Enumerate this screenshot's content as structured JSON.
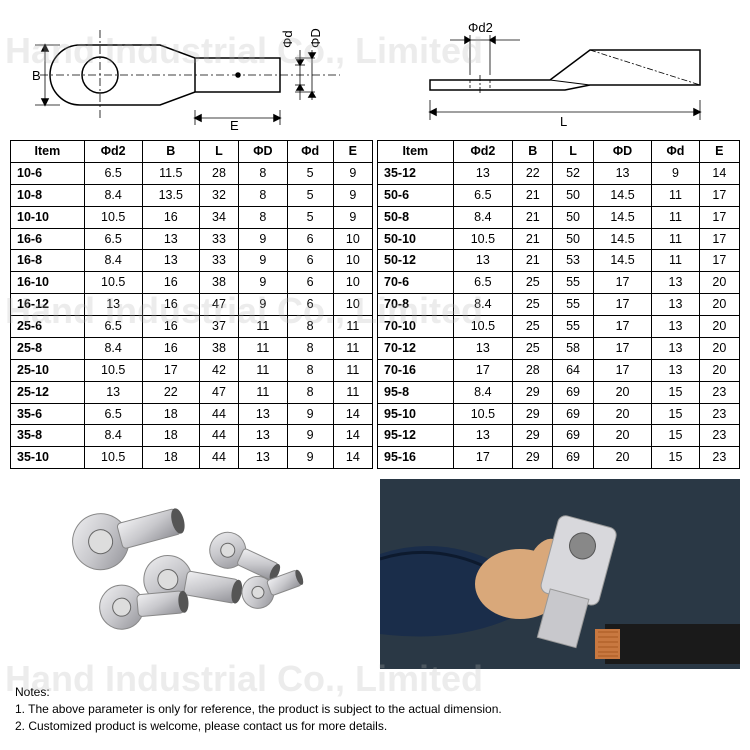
{
  "watermark_text": "Hand Industrial Co., Limited",
  "diagrams": {
    "left": {
      "labels": {
        "B": "B",
        "E": "E",
        "phi_d": "Φd",
        "phi_D": "ΦD"
      }
    },
    "right": {
      "labels": {
        "phi_d2": "Φd2",
        "L": "L"
      }
    }
  },
  "table": {
    "headers": [
      "Item",
      "Φd2",
      "B",
      "L",
      "ΦD",
      "Φd",
      "E"
    ],
    "left_rows": [
      [
        "10-6",
        "6.5",
        "11.5",
        "28",
        "8",
        "5",
        "9"
      ],
      [
        "10-8",
        "8.4",
        "13.5",
        "32",
        "8",
        "5",
        "9"
      ],
      [
        "10-10",
        "10.5",
        "16",
        "34",
        "8",
        "5",
        "9"
      ],
      [
        "16-6",
        "6.5",
        "13",
        "33",
        "9",
        "6",
        "10"
      ],
      [
        "16-8",
        "8.4",
        "13",
        "33",
        "9",
        "6",
        "10"
      ],
      [
        "16-10",
        "10.5",
        "16",
        "38",
        "9",
        "6",
        "10"
      ],
      [
        "16-12",
        "13",
        "16",
        "47",
        "9",
        "6",
        "10"
      ],
      [
        "25-6",
        "6.5",
        "16",
        "37",
        "11",
        "8",
        "11"
      ],
      [
        "25-8",
        "8.4",
        "16",
        "38",
        "11",
        "8",
        "11"
      ],
      [
        "25-10",
        "10.5",
        "17",
        "42",
        "11",
        "8",
        "11"
      ],
      [
        "25-12",
        "13",
        "22",
        "47",
        "11",
        "8",
        "11"
      ],
      [
        "35-6",
        "6.5",
        "18",
        "44",
        "13",
        "9",
        "14"
      ],
      [
        "35-8",
        "8.4",
        "18",
        "44",
        "13",
        "9",
        "14"
      ],
      [
        "35-10",
        "10.5",
        "18",
        "44",
        "13",
        "9",
        "14"
      ]
    ],
    "right_rows": [
      [
        "35-12",
        "13",
        "22",
        "52",
        "13",
        "9",
        "14"
      ],
      [
        "50-6",
        "6.5",
        "21",
        "50",
        "14.5",
        "11",
        "17"
      ],
      [
        "50-8",
        "8.4",
        "21",
        "50",
        "14.5",
        "11",
        "17"
      ],
      [
        "50-10",
        "10.5",
        "21",
        "50",
        "14.5",
        "11",
        "17"
      ],
      [
        "50-12",
        "13",
        "21",
        "53",
        "14.5",
        "11",
        "17"
      ],
      [
        "70-6",
        "6.5",
        "25",
        "55",
        "17",
        "13",
        "20"
      ],
      [
        "70-8",
        "8.4",
        "25",
        "55",
        "17",
        "13",
        "20"
      ],
      [
        "70-10",
        "10.5",
        "25",
        "55",
        "17",
        "13",
        "20"
      ],
      [
        "70-12",
        "13",
        "25",
        "58",
        "17",
        "13",
        "20"
      ],
      [
        "70-16",
        "17",
        "28",
        "64",
        "17",
        "13",
        "20"
      ],
      [
        "95-8",
        "8.4",
        "29",
        "69",
        "20",
        "15",
        "23"
      ],
      [
        "95-10",
        "10.5",
        "29",
        "69",
        "20",
        "15",
        "23"
      ],
      [
        "95-12",
        "13",
        "29",
        "69",
        "20",
        "15",
        "23"
      ],
      [
        "95-16",
        "17",
        "29",
        "69",
        "20",
        "15",
        "23"
      ]
    ]
  },
  "notes": {
    "title": "Notes:",
    "line1": "1. The above parameter is only for reference, the product is subject to the actual dimension.",
    "line2": "2. Customized product is welcome, please contact us for more details."
  },
  "colors": {
    "stroke": "#000000",
    "bg": "#ffffff",
    "metal_light": "#e8e8ea",
    "metal_dark": "#b8b8bc",
    "metal_shadow": "#888890",
    "hand_skin": "#d9a87a",
    "jacket": "#1a2d4a",
    "cable": "#1a1a1a",
    "copper": "#c87840"
  }
}
